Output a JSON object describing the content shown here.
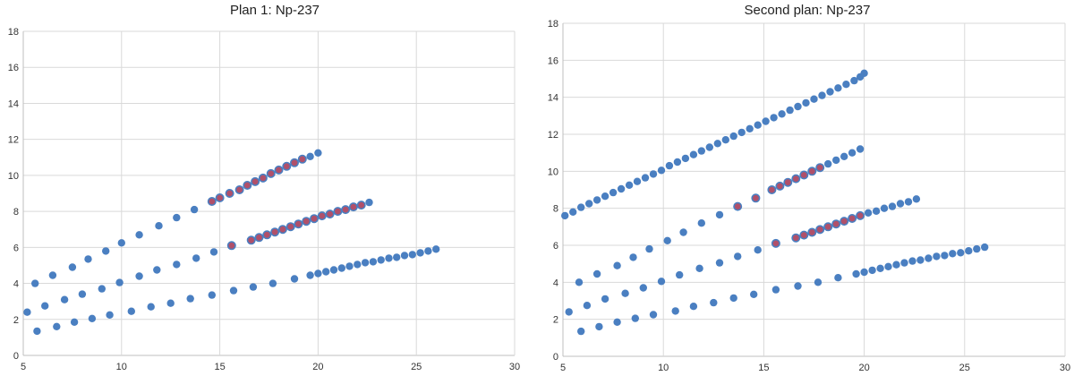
{
  "chart_data": [
    {
      "type": "scatter",
      "title": "Plan 1: Np-237",
      "xlim": [
        5,
        30
      ],
      "ylim": [
        0,
        18
      ],
      "x_ticks": [
        "5",
        "10",
        "15",
        "20",
        "25",
        "30"
      ],
      "y_ticks": [
        "0",
        "2",
        "4",
        "6",
        "8",
        "10",
        "12",
        "14",
        "16",
        "18"
      ],
      "grid": "vertical and horizontal",
      "legend": "none",
      "colors": {
        "blue": "#4a7fc1",
        "highlight": "#b0506a"
      },
      "series": [
        {
          "points": [
            [
              5.6,
              4.0
            ],
            [
              6.5,
              4.45
            ],
            [
              7.5,
              4.9
            ],
            [
              8.3,
              5.35
            ],
            [
              9.2,
              5.8
            ],
            [
              10.0,
              6.25
            ],
            [
              10.9,
              6.7
            ],
            [
              11.9,
              7.2
            ],
            [
              12.8,
              7.65
            ],
            [
              13.7,
              8.1
            ],
            [
              14.6,
              8.55
            ],
            [
              15.0,
              8.75
            ],
            [
              15.5,
              9.0
            ],
            [
              16.0,
              9.2
            ],
            [
              16.4,
              9.45
            ],
            [
              16.8,
              9.65
            ],
            [
              17.2,
              9.85
            ],
            [
              17.6,
              10.1
            ],
            [
              18.0,
              10.3
            ],
            [
              18.4,
              10.5
            ],
            [
              18.8,
              10.7
            ],
            [
              19.2,
              10.9
            ],
            [
              19.6,
              11.05
            ],
            [
              20.0,
              11.25
            ]
          ],
          "highlight_x": [
            14.0,
            19.2
          ]
        },
        {
          "points": [
            [
              5.2,
              2.4
            ],
            [
              6.1,
              2.75
            ],
            [
              7.1,
              3.1
            ],
            [
              8.0,
              3.4
            ],
            [
              9.0,
              3.7
            ],
            [
              9.9,
              4.05
            ],
            [
              10.9,
              4.4
            ],
            [
              11.8,
              4.75
            ],
            [
              12.8,
              5.05
            ],
            [
              13.8,
              5.4
            ],
            [
              14.7,
              5.75
            ],
            [
              15.6,
              6.1
            ],
            [
              16.6,
              6.4
            ],
            [
              17.0,
              6.55
            ],
            [
              17.4,
              6.7
            ],
            [
              17.8,
              6.85
            ],
            [
              18.2,
              7.0
            ],
            [
              18.6,
              7.15
            ],
            [
              19.0,
              7.3
            ],
            [
              19.4,
              7.45
            ],
            [
              19.8,
              7.6
            ],
            [
              20.2,
              7.75
            ],
            [
              20.6,
              7.85
            ],
            [
              21.0,
              8.0
            ],
            [
              21.4,
              8.1
            ],
            [
              21.8,
              8.25
            ],
            [
              22.2,
              8.35
            ],
            [
              22.6,
              8.5
            ]
          ],
          "highlight_x": [
            15.3,
            22.3
          ]
        },
        {
          "points": [
            [
              5.7,
              1.35
            ],
            [
              6.7,
              1.6
            ],
            [
              7.6,
              1.85
            ],
            [
              8.5,
              2.05
            ],
            [
              9.4,
              2.25
            ],
            [
              10.5,
              2.45
            ],
            [
              11.5,
              2.7
            ],
            [
              12.5,
              2.9
            ],
            [
              13.5,
              3.15
            ],
            [
              14.6,
              3.35
            ],
            [
              15.7,
              3.6
            ],
            [
              16.7,
              3.8
            ],
            [
              17.7,
              4.0
            ],
            [
              18.8,
              4.25
            ],
            [
              19.6,
              4.45
            ],
            [
              20.0,
              4.55
            ],
            [
              20.4,
              4.65
            ],
            [
              20.8,
              4.75
            ],
            [
              21.2,
              4.85
            ],
            [
              21.6,
              4.95
            ],
            [
              22.0,
              5.05
            ],
            [
              22.4,
              5.15
            ],
            [
              22.8,
              5.2
            ],
            [
              23.2,
              5.3
            ],
            [
              23.6,
              5.4
            ],
            [
              24.0,
              5.45
            ],
            [
              24.4,
              5.55
            ],
            [
              24.8,
              5.6
            ],
            [
              25.2,
              5.7
            ],
            [
              25.6,
              5.8
            ],
            [
              26.0,
              5.9
            ]
          ],
          "highlight_x": []
        }
      ]
    },
    {
      "type": "scatter",
      "title": "Second plan: Np-237",
      "xlim": [
        5,
        30
      ],
      "ylim": [
        0,
        18
      ],
      "x_ticks": [
        "5",
        "10",
        "15",
        "20",
        "25",
        "30"
      ],
      "y_ticks": [
        "0",
        "2",
        "4",
        "6",
        "8",
        "10",
        "12",
        "14",
        "16",
        "18"
      ],
      "grid": "vertical and horizontal",
      "legend": "none",
      "colors": {
        "blue": "#4a7fc1",
        "highlight": "#b0506a"
      },
      "series": [
        {
          "points": [
            [
              5.1,
              7.6
            ],
            [
              5.5,
              7.8
            ],
            [
              5.9,
              8.05
            ],
            [
              6.3,
              8.25
            ],
            [
              6.7,
              8.45
            ],
            [
              7.1,
              8.65
            ],
            [
              7.5,
              8.85
            ],
            [
              7.9,
              9.05
            ],
            [
              8.3,
              9.25
            ],
            [
              8.7,
              9.45
            ],
            [
              9.1,
              9.65
            ],
            [
              9.5,
              9.85
            ],
            [
              9.9,
              10.05
            ],
            [
              10.3,
              10.3
            ],
            [
              10.7,
              10.5
            ],
            [
              11.1,
              10.7
            ],
            [
              11.5,
              10.9
            ],
            [
              11.9,
              11.1
            ],
            [
              12.3,
              11.3
            ],
            [
              12.7,
              11.5
            ],
            [
              13.1,
              11.7
            ],
            [
              13.5,
              11.9
            ],
            [
              13.9,
              12.1
            ],
            [
              14.3,
              12.3
            ],
            [
              14.7,
              12.5
            ],
            [
              15.1,
              12.7
            ],
            [
              15.5,
              12.9
            ],
            [
              15.9,
              13.1
            ],
            [
              16.3,
              13.3
            ],
            [
              16.7,
              13.5
            ],
            [
              17.1,
              13.7
            ],
            [
              17.5,
              13.9
            ],
            [
              17.9,
              14.1
            ],
            [
              18.3,
              14.3
            ],
            [
              18.7,
              14.5
            ],
            [
              19.1,
              14.7
            ],
            [
              19.5,
              14.9
            ],
            [
              19.8,
              15.1
            ],
            [
              20.0,
              15.3
            ]
          ],
          "highlight_x": []
        },
        {
          "points": [
            [
              5.8,
              4.0
            ],
            [
              6.7,
              4.45
            ],
            [
              7.7,
              4.9
            ],
            [
              8.5,
              5.35
            ],
            [
              9.3,
              5.8
            ],
            [
              10.2,
              6.25
            ],
            [
              11.0,
              6.7
            ],
            [
              11.9,
              7.2
            ],
            [
              12.8,
              7.65
            ],
            [
              13.7,
              8.1
            ],
            [
              14.6,
              8.55
            ],
            [
              15.4,
              9.0
            ],
            [
              15.8,
              9.2
            ],
            [
              16.2,
              9.4
            ],
            [
              16.6,
              9.6
            ],
            [
              17.0,
              9.8
            ],
            [
              17.4,
              10.0
            ],
            [
              17.8,
              10.2
            ],
            [
              18.2,
              10.4
            ],
            [
              18.6,
              10.6
            ],
            [
              19.0,
              10.8
            ],
            [
              19.4,
              11.0
            ],
            [
              19.8,
              11.2
            ]
          ],
          "highlight_x": [
            13.6,
            17.9
          ]
        },
        {
          "points": [
            [
              5.3,
              2.4
            ],
            [
              6.2,
              2.75
            ],
            [
              7.1,
              3.1
            ],
            [
              8.1,
              3.4
            ],
            [
              9.0,
              3.7
            ],
            [
              9.9,
              4.05
            ],
            [
              10.8,
              4.4
            ],
            [
              11.8,
              4.75
            ],
            [
              12.8,
              5.05
            ],
            [
              13.7,
              5.4
            ],
            [
              14.7,
              5.75
            ],
            [
              15.6,
              6.1
            ],
            [
              16.6,
              6.4
            ],
            [
              17.0,
              6.55
            ],
            [
              17.4,
              6.7
            ],
            [
              17.8,
              6.85
            ],
            [
              18.2,
              7.0
            ],
            [
              18.6,
              7.15
            ],
            [
              19.0,
              7.3
            ],
            [
              19.4,
              7.45
            ],
            [
              19.8,
              7.6
            ],
            [
              20.2,
              7.75
            ],
            [
              20.6,
              7.85
            ],
            [
              21.0,
              8.0
            ],
            [
              21.4,
              8.1
            ],
            [
              21.8,
              8.25
            ],
            [
              22.2,
              8.35
            ],
            [
              22.6,
              8.5
            ]
          ],
          "highlight_x": [
            15.3,
            19.9
          ]
        },
        {
          "points": [
            [
              5.9,
              1.35
            ],
            [
              6.8,
              1.6
            ],
            [
              7.7,
              1.85
            ],
            [
              8.6,
              2.05
            ],
            [
              9.5,
              2.25
            ],
            [
              10.6,
              2.45
            ],
            [
              11.5,
              2.7
            ],
            [
              12.5,
              2.9
            ],
            [
              13.5,
              3.15
            ],
            [
              14.5,
              3.35
            ],
            [
              15.6,
              3.6
            ],
            [
              16.7,
              3.8
            ],
            [
              17.7,
              4.0
            ],
            [
              18.7,
              4.25
            ],
            [
              19.6,
              4.45
            ],
            [
              20.0,
              4.55
            ],
            [
              20.4,
              4.65
            ],
            [
              20.8,
              4.75
            ],
            [
              21.2,
              4.85
            ],
            [
              21.6,
              4.95
            ],
            [
              22.0,
              5.05
            ],
            [
              22.4,
              5.15
            ],
            [
              22.8,
              5.2
            ],
            [
              23.2,
              5.3
            ],
            [
              23.6,
              5.4
            ],
            [
              24.0,
              5.45
            ],
            [
              24.4,
              5.55
            ],
            [
              24.8,
              5.6
            ],
            [
              25.2,
              5.7
            ],
            [
              25.6,
              5.8
            ],
            [
              26.0,
              5.9
            ]
          ],
          "highlight_x": []
        }
      ]
    }
  ]
}
